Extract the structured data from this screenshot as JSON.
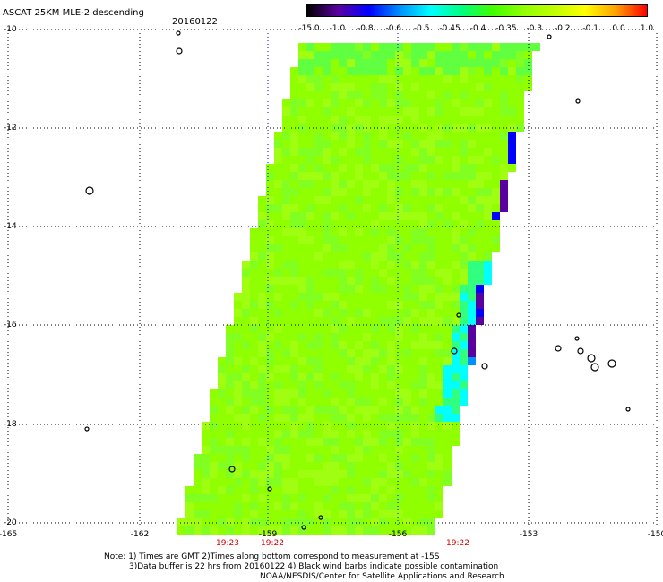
{
  "header": {
    "title": "ASCAT 25KM MLE-2 descending",
    "date": "20160122"
  },
  "colorbar": {
    "labels": [
      "-15.0",
      "-1.0",
      "-0.8",
      "-0.6",
      "-0.5",
      "-0.45",
      "-0.4",
      "-0.35",
      "-0.3",
      "-0.2",
      "-0.1",
      "0.0",
      "1.0"
    ],
    "colors": [
      "#000000",
      "#5a00a0",
      "#0000ff",
      "#0090ff",
      "#00ffff",
      "#00ff80",
      "#40ff00",
      "#90ff00",
      "#c0ff00",
      "#ffff00",
      "#ffa000",
      "#ff0000"
    ]
  },
  "axes": {
    "x_ticks": [
      "-165",
      "-162",
      "-159",
      "-156",
      "-153",
      "-150"
    ],
    "y_ticks": [
      "-10",
      "-12",
      "-14",
      "-16",
      "-18",
      "-20"
    ]
  },
  "time_labels": [
    "19:23",
    "19:22",
    "19:22"
  ],
  "notes": {
    "line1": "Note: 1) Times are GMT 2)Times along bottom correspond to measurement at -15S",
    "line2": "3)Data buffer is 22 hrs from 20160122 4) Black wind barbs indicate possible contamination",
    "line3": "NOAA/NESDIS/Center for Satellite Applications and Research"
  },
  "style": {
    "grid_color": "#000000",
    "grid_lon_center_color": "#0000ff",
    "time_label_color": "#d40000",
    "swath_colors": [
      "#90ff00",
      "#80ff20",
      "#a0ff10",
      "#60ff40",
      "#30ff80",
      "#00ffff",
      "#0090ff",
      "#0000ff",
      "#5a00a0"
    ]
  }
}
